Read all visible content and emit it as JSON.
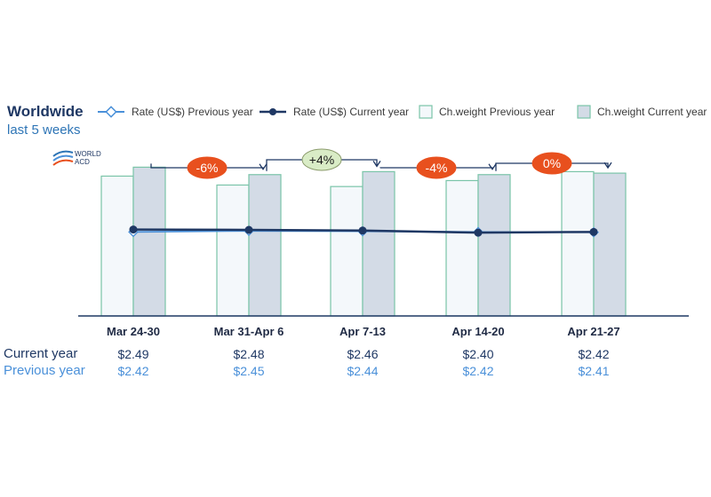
{
  "header": {
    "title": "Worldwide",
    "subtitle": "last 5 weeks"
  },
  "logo": {
    "line1": "WORLD",
    "line2": "ACD"
  },
  "legend": [
    {
      "key": "rate_prev",
      "label": "Rate (US$) Previous year",
      "style": "line-open-diamond"
    },
    {
      "key": "rate_cur",
      "label": "Rate (US$) Current year",
      "style": "line-dot"
    },
    {
      "key": "cw_prev",
      "label": "Ch.weight Previous year",
      "style": "bar-light"
    },
    {
      "key": "cw_cur",
      "label": "Ch.weight Current year",
      "style": "bar-filled"
    }
  ],
  "table": {
    "current_label": "Current year",
    "previous_label": "Previous year"
  },
  "colors": {
    "bar_prev_fill": "#f4f8fb",
    "bar_prev_stroke": "#7ac4a8",
    "bar_cur_fill": "#d3dbe6",
    "bar_cur_stroke": "#7ac4a8",
    "line_cur": "#1f3864",
    "line_prev": "#4a90d9",
    "badge_red": "#e8501e",
    "badge_green": "#d9ecc6"
  },
  "chart_data": {
    "type": "bar",
    "categories": [
      "Mar 24-30",
      "Mar 31-Apr 6",
      "Apr 7-13",
      "Apr 14-20",
      "Apr 21-27"
    ],
    "series": [
      {
        "name": "Ch.weight Previous year",
        "values": [
          94,
          88,
          87,
          91,
          97
        ]
      },
      {
        "name": "Ch.weight Current year",
        "values": [
          100,
          95,
          97,
          95,
          96
        ]
      }
    ],
    "rate_series": [
      {
        "name": "Rate (US$) Current year",
        "values": [
          2.49,
          2.48,
          2.46,
          2.4,
          2.42
        ],
        "labels": [
          "$2.49",
          "$2.48",
          "$2.46",
          "$2.40",
          "$2.42"
        ]
      },
      {
        "name": "Rate (US$) Previous year",
        "values": [
          2.42,
          2.45,
          2.44,
          2.42,
          2.41
        ],
        "labels": [
          "$2.42",
          "$2.45",
          "$2.44",
          "$2.42",
          "$2.41"
        ]
      }
    ],
    "changes": [
      {
        "text": "-6%",
        "from": 0,
        "to": 1,
        "color": "red"
      },
      {
        "text": "+4%",
        "from": 1,
        "to": 2,
        "color": "green"
      },
      {
        "text": "-4%",
        "from": 2,
        "to": 3,
        "color": "red"
      },
      {
        "text": "0%",
        "from": 3,
        "to": 4,
        "color": "red"
      }
    ],
    "weight_ylim": [
      0,
      105
    ],
    "rate_ylim": [
      0,
      4.5
    ],
    "grid": false,
    "legend_position": "top"
  }
}
